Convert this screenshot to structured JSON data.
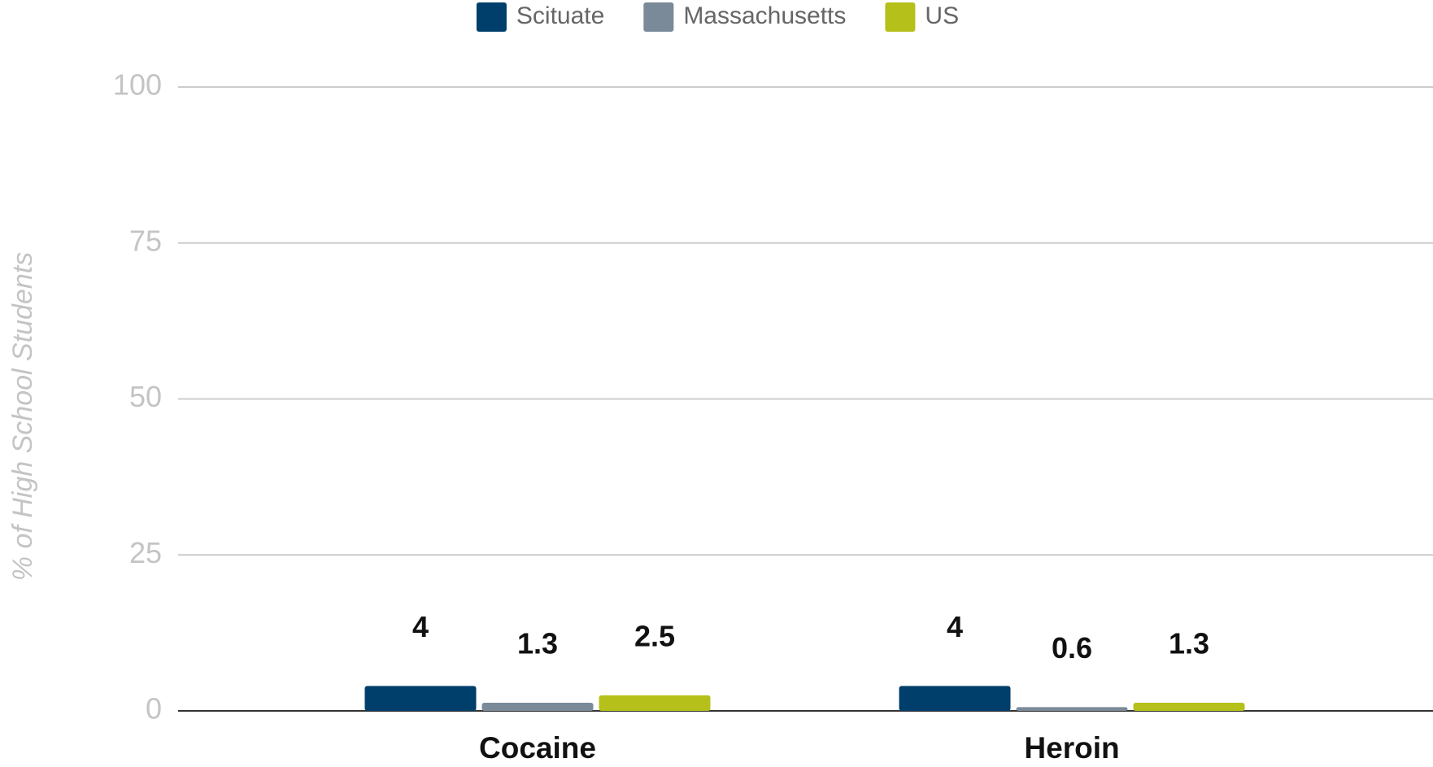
{
  "chart_data": {
    "type": "bar",
    "y_label": "% of High School Students",
    "categories": [
      "Cocaine",
      "Heroin"
    ],
    "series": [
      {
        "name": "Scituate",
        "color": "#003f6b",
        "values": [
          4,
          4
        ]
      },
      {
        "name": "Massachusetts",
        "color": "#7a8a99",
        "values": [
          1.3,
          0.6
        ]
      },
      {
        "name": "US",
        "color": "#b5c01a",
        "values": [
          2.5,
          1.3
        ]
      }
    ],
    "ylim": [
      0,
      100
    ],
    "yticks": [
      0,
      25,
      50,
      75,
      100
    ],
    "grid": true,
    "legend": "top"
  }
}
